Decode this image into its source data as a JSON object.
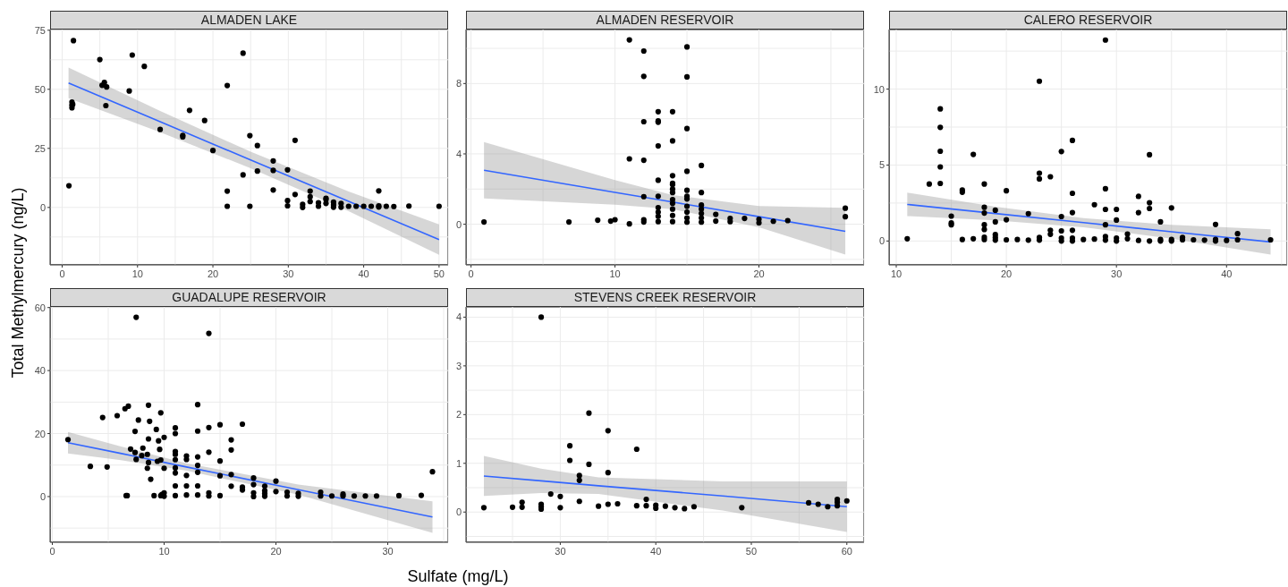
{
  "chart_data": [
    {
      "type": "scatter",
      "title": "ALMADEN LAKE",
      "ylabel": "Total Methylmercury (ng/L)",
      "xlim": [
        -1.6,
        51.2
      ],
      "ylim": [
        -24.3,
        75.3
      ],
      "xticks": [
        0,
        {
          "value": 5,
          "label": null
        },
        10,
        {
          "value": 15,
          "label": null
        },
        20,
        {
          "value": 25,
          "label": null
        },
        30,
        {
          "value": 35,
          "label": null
        },
        40,
        {
          "value": 45,
          "label": null
        },
        50
      ],
      "yticks": [
        {
          "value": -12.5,
          "label": null
        },
        0,
        {
          "value": 12.5,
          "label": null
        },
        25,
        {
          "value": 37.5,
          "label": null
        },
        50,
        {
          "value": 62.5,
          "label": null
        },
        75
      ],
      "grid": true,
      "marker": "circle",
      "series": [
        {
          "color": "#000000",
          "x": [
            0.9,
            1.5,
            1.3,
            1.3,
            1.3,
            1.4,
            5.0,
            5.3,
            5.6,
            5.9,
            5.8,
            8.9,
            9.3,
            10.9,
            13.0,
            16.0,
            16.0,
            16.9,
            18.9,
            20.0,
            21.9,
            21.9,
            21.9,
            24.0,
            24.0,
            24.9,
            24.9,
            25.9,
            25.9,
            28.0,
            28.0,
            28.0,
            29.9,
            29.9,
            29.9,
            30.9,
            30.9,
            31.9,
            31.9,
            32.9,
            32.9,
            32.9,
            34,
            34,
            35,
            35,
            35,
            36,
            36,
            36,
            37,
            37,
            38,
            39,
            40,
            41,
            42,
            42,
            42,
            43,
            44,
            46,
            50
          ],
          "values": [
            9.2,
            70.6,
            44.6,
            43.4,
            42.2,
            43.6,
            62.6,
            51.7,
            52.9,
            51.0,
            43.1,
            49.3,
            64.5,
            59.7,
            33.0,
            30.5,
            29.9,
            41.1,
            36.8,
            24.1,
            51.6,
            6.9,
            0.5,
            65.3,
            13.8,
            30.4,
            0.5,
            26.2,
            15.4,
            19.7,
            15.7,
            7.4,
            15.9,
            2.9,
            0.7,
            28.4,
            5.5,
            1.3,
            0.0,
            6.9,
            4.5,
            2.5,
            2.0,
            0.5,
            3.9,
            3.3,
            1.7,
            2.3,
            1.1,
            0.1,
            1.7,
            0.1,
            0.5,
            0.5,
            0.5,
            0.5,
            7.0,
            0.7,
            0.2,
            0.5,
            0.4,
            0.6,
            0.5
          ]
        },
        {
          "type": "line",
          "marker": "none",
          "color": "#3366ff",
          "x": [
            0.85,
            13,
            25,
            38,
            50
          ],
          "values": [
            52.7,
            36.3,
            20.1,
            2.6,
            -13.6
          ],
          "lower": [
            46.2,
            31.8,
            16.6,
            -1.6,
            -20.0
          ],
          "upper": [
            59.2,
            40.8,
            23.6,
            6.8,
            -7.2
          ]
        }
      ]
    },
    {
      "type": "scatter",
      "title": "ALMADEN RESERVOIR",
      "xlim": [
        -0.35,
        27.3
      ],
      "ylim": [
        -2.31,
        11.07
      ],
      "xticks": [
        0,
        {
          "value": 5,
          "label": null
        },
        10,
        {
          "value": 15,
          "label": null
        },
        20,
        {
          "value": 25,
          "label": null
        }
      ],
      "yticks": [
        {
          "value": -2,
          "label": null
        },
        0,
        {
          "value": 2,
          "label": null
        },
        4,
        {
          "value": 6,
          "label": null
        },
        8,
        {
          "value": 10,
          "label": null
        }
      ],
      "grid": true,
      "marker": "circle",
      "series": [
        {
          "color": "#000000",
          "x": [
            0.9,
            6.8,
            8.8,
            9.7,
            10,
            11,
            11,
            11,
            12,
            12,
            12,
            12,
            12,
            12,
            12,
            13,
            13,
            13,
            13,
            13,
            13,
            13,
            13,
            13,
            13,
            14,
            14,
            14,
            14,
            14,
            14,
            14,
            14,
            14,
            14,
            14,
            14,
            15,
            15,
            15,
            15,
            15,
            15,
            15,
            15,
            15,
            15,
            15,
            16,
            16,
            16,
            16,
            16,
            16,
            16,
            17,
            17,
            18,
            18,
            19,
            20,
            20,
            21,
            22,
            26,
            26
          ],
          "values": [
            0.13,
            0.13,
            0.23,
            0.18,
            0.26,
            10.48,
            3.72,
            0.02,
            9.85,
            8.41,
            5.83,
            3.64,
            1.57,
            0.26,
            0.13,
            6.4,
            5.87,
            5.8,
            4.45,
            2.5,
            1.59,
            0.94,
            0.69,
            0.45,
            0.15,
            6.4,
            4.74,
            2.76,
            2.33,
            2.25,
            2.0,
            1.8,
            1.4,
            1.19,
            0.86,
            0.5,
            0.15,
            10.08,
            8.38,
            5.44,
            3.01,
            1.93,
            1.59,
            1.44,
            1.02,
            0.69,
            0.36,
            0.12,
            3.34,
            1.8,
            1.09,
            0.86,
            0.61,
            0.36,
            0.12,
            0.56,
            0.18,
            0.33,
            0.15,
            0.33,
            0.28,
            0.08,
            0.17,
            0.21,
            0.91,
            0.43
          ]
        },
        {
          "type": "line",
          "marker": "none",
          "color": "#3366ff",
          "x": [
            0.9,
            10,
            14,
            20,
            26
          ],
          "values": [
            3.07,
            1.81,
            1.26,
            0.43,
            -0.4
          ],
          "lower": [
            1.47,
            1.11,
            0.86,
            -0.17,
            -1.73
          ],
          "upper": [
            4.67,
            2.51,
            1.66,
            1.03,
            0.93
          ]
        }
      ]
    },
    {
      "type": "scatter",
      "title": "CALERO RESERVOIR",
      "xlim": [
        9.35,
        45.5
      ],
      "ylim": [
        -1.57,
        13.92
      ],
      "xticks": [
        10,
        {
          "value": 15,
          "label": null
        },
        20,
        {
          "value": 25,
          "label": null
        },
        30,
        {
          "value": 35,
          "label": null
        },
        40,
        {
          "value": 45,
          "label": null
        }
      ],
      "yticks": [
        0,
        {
          "value": 2.5,
          "label": null
        },
        5,
        {
          "value": 7.5,
          "label": null
        },
        10,
        {
          "value": 12.5,
          "label": null
        }
      ],
      "grid": true,
      "marker": "circle",
      "series": [
        {
          "color": "#000000",
          "x": [
            11,
            13,
            14,
            14,
            14,
            14,
            14,
            15,
            15,
            15,
            16,
            16,
            16,
            17,
            17,
            18,
            18,
            18,
            18,
            18,
            18,
            18,
            19,
            19,
            19,
            19,
            19,
            20,
            20,
            20,
            21,
            22,
            22,
            23,
            23,
            23,
            23,
            23,
            24,
            24,
            24,
            25,
            25,
            25,
            25,
            25,
            26,
            26,
            26,
            26,
            26,
            26,
            27,
            28,
            28,
            29,
            29,
            29,
            29,
            29,
            29,
            30,
            30,
            30,
            30,
            31,
            31,
            32,
            32,
            32,
            33,
            33,
            33,
            33,
            34,
            34,
            34,
            35,
            35,
            35,
            36,
            36,
            37,
            38,
            39,
            39,
            39,
            40,
            41,
            41,
            44
          ],
          "values": [
            0.15,
            3.75,
            8.7,
            7.48,
            5.91,
            4.88,
            3.79,
            1.64,
            1.19,
            1.07,
            3.35,
            3.21,
            0.1,
            5.7,
            0.15,
            3.75,
            2.22,
            1.84,
            1.07,
            0.76,
            0.25,
            0.1,
            2.03,
            1.26,
            0.42,
            0.23,
            0.06,
            3.31,
            1.4,
            0.08,
            0.1,
            1.8,
            0.06,
            10.52,
            4.46,
            4.09,
            0.23,
            0.06,
            4.23,
            0.71,
            0.44,
            5.89,
            1.61,
            0.67,
            0.19,
            0,
            6.62,
            3.14,
            1.87,
            0.71,
            0.19,
            0,
            0.1,
            2.39,
            0.13,
            13.23,
            3.44,
            2.08,
            1.07,
            0.29,
            0.06,
            2.08,
            1.38,
            0.19,
            0,
            0.46,
            0.15,
            2.94,
            1.87,
            0.04,
            5.68,
            2.52,
            2.14,
            0,
            1.26,
            0.1,
            0,
            2.18,
            0.1,
            0,
            0.23,
            0.08,
            0.08,
            0.06,
            1.09,
            0.1,
            0,
            0.04,
            0.48,
            0.08,
            0.08
          ]
        },
        {
          "type": "line",
          "marker": "none",
          "color": "#3366ff",
          "x": [
            11,
            19,
            27,
            35,
            44
          ],
          "values": [
            2.41,
            1.81,
            1.21,
            0.61,
            -0.06
          ],
          "lower": [
            1.64,
            1.36,
            0.91,
            0.16,
            -0.89
          ],
          "upper": [
            3.18,
            2.26,
            1.51,
            1.06,
            0.77
          ]
        }
      ]
    },
    {
      "type": "scatter",
      "title": "GUADALUPE RESERVOIR",
      "xlim": [
        -0.2,
        35.4
      ],
      "ylim": [
        -14.5,
        60.2
      ],
      "xticks": [
        0,
        {
          "value": 5,
          "label": null
        },
        10,
        {
          "value": 15,
          "label": null
        },
        20,
        {
          "value": 25,
          "label": null
        },
        30,
        {
          "value": 35,
          "label": null
        }
      ],
      "yticks": [
        {
          "value": -10,
          "label": null
        },
        0,
        {
          "value": 10,
          "label": null
        },
        20,
        {
          "value": 30,
          "label": null
        },
        40,
        {
          "value": 50,
          "label": null
        },
        60
      ],
      "grid": true,
      "marker": "circle",
      "series": [
        {
          "color": "#000000",
          "x": [
            1.4,
            3.4,
            4.5,
            4.9,
            5.8,
            6.5,
            6.6,
            6.7,
            6.8,
            7.0,
            7.4,
            7.4,
            7.5,
            7.5,
            7.7,
            8.0,
            8.1,
            8.5,
            8.5,
            8.6,
            8.6,
            8.6,
            8.7,
            8.8,
            9.1,
            9.3,
            9.4,
            9.5,
            9.6,
            9.7,
            9.7,
            9.7,
            9.8,
            10.0,
            10.0,
            10.0,
            10.0,
            11,
            11,
            11,
            11,
            11,
            11,
            11,
            11,
            11,
            12,
            12,
            12,
            12,
            12,
            13,
            13,
            13,
            13,
            13,
            13,
            13,
            14,
            14,
            14,
            14,
            14,
            15,
            15,
            15,
            15,
            16,
            16,
            16,
            16,
            17,
            17,
            17,
            18,
            18,
            18,
            18,
            19,
            19,
            19,
            19,
            20,
            20,
            21,
            21,
            22,
            22,
            24,
            24,
            25,
            26,
            26,
            27,
            28,
            29,
            31,
            33,
            34
          ],
          "values": [
            18.1,
            9.6,
            25.1,
            9.4,
            25.7,
            27.9,
            0.3,
            0.3,
            28.7,
            15.1,
            20.7,
            14.0,
            56.9,
            11.8,
            24.3,
            13.0,
            15.4,
            13.4,
            9.0,
            29.0,
            18.3,
            10.8,
            23.9,
            5.5,
            0.3,
            21.3,
            11.2,
            17.7,
            15.0,
            26.6,
            11.6,
            0.3,
            0.7,
            18.8,
            9.0,
            1.2,
            0.1,
            21.8,
            20.0,
            14.3,
            13.4,
            11.7,
            9.1,
            7.5,
            3.4,
            0.3,
            12.9,
            11.8,
            6.7,
            3.4,
            0.5,
            29.2,
            20.8,
            12.6,
            9.9,
            7.7,
            3.4,
            0.5,
            51.8,
            21.9,
            14.1,
            1.2,
            0.2,
            22.8,
            11.3,
            6.6,
            0.3,
            18.0,
            14.8,
            7.0,
            3.3,
            23.0,
            3.0,
            2.1,
            5.9,
            3.8,
            1.2,
            0,
            3.3,
            1.9,
            1.0,
            0.1,
            4.9,
            1.6,
            1.4,
            0.2,
            1.0,
            0.1,
            1.4,
            0.2,
            0.2,
            0.8,
            0.2,
            0.2,
            0.2,
            0.2,
            0.3,
            0.4,
            7.9
          ]
        },
        {
          "type": "line",
          "marker": "none",
          "color": "#3366ff",
          "x": [
            1.4,
            6,
            12,
            22,
            34
          ],
          "values": [
            17.1,
            13.8,
            9.4,
            2.2,
            -6.5
          ],
          "lower": [
            13.7,
            11.6,
            8.2,
            0.6,
            -11.5
          ],
          "upper": [
            20.5,
            16.0,
            10.6,
            3.8,
            -1.5
          ]
        }
      ]
    },
    {
      "type": "scatter",
      "title": "STEVENS CREEK RESERVOIR",
      "xlabel": "Sulfate (mg/L)",
      "xlim": [
        20.13,
        61.8
      ],
      "ylim": [
        -0.62,
        4.21
      ],
      "xticks": [
        {
          "value": 25,
          "label": null
        },
        30,
        {
          "value": 35,
          "label": null
        },
        40,
        {
          "value": 45,
          "label": null
        },
        50,
        {
          "value": 55,
          "label": null
        },
        60
      ],
      "yticks": [
        {
          "value": -0.5,
          "label": null
        },
        0,
        {
          "value": 0.5,
          "label": null
        },
        1,
        {
          "value": 1.5,
          "label": null
        },
        2,
        {
          "value": 2.5,
          "label": null
        },
        3,
        {
          "value": 3.5,
          "label": null
        },
        4
      ],
      "grid": true,
      "marker": "circle",
      "series": [
        {
          "color": "#000000",
          "x": [
            22,
            25,
            26,
            26,
            28,
            28,
            28,
            28,
            29,
            30,
            30,
            31,
            31,
            32,
            32,
            32,
            33,
            33,
            34,
            35,
            35,
            35,
            36,
            38,
            38,
            39,
            39,
            40,
            40,
            41,
            42,
            43,
            44,
            49,
            56,
            57,
            58,
            59,
            59,
            59,
            60
          ],
          "values": [
            0.09,
            0.1,
            0.2,
            0.1,
            4.0,
            0.16,
            0.11,
            0.06,
            0.37,
            0.32,
            0.09,
            1.36,
            1.06,
            0.75,
            0.65,
            0.22,
            2.03,
            0.98,
            0.12,
            1.67,
            0.81,
            0.16,
            0.17,
            1.29,
            0.13,
            0.26,
            0.13,
            0.14,
            0.08,
            0.12,
            0.09,
            0.07,
            0.11,
            0.09,
            0.19,
            0.16,
            0.11,
            0.26,
            0.2,
            0.13,
            0.23
          ]
        },
        {
          "type": "line",
          "marker": "none",
          "color": "#3366ff",
          "x": [
            22,
            28,
            34,
            47,
            60
          ],
          "values": [
            0.74,
            0.64,
            0.54,
            0.33,
            0.11
          ],
          "lower": [
            0.33,
            0.39,
            0.37,
            0.03,
            -0.41
          ],
          "upper": [
            1.15,
            0.89,
            0.71,
            0.63,
            0.63
          ]
        }
      ]
    }
  ]
}
